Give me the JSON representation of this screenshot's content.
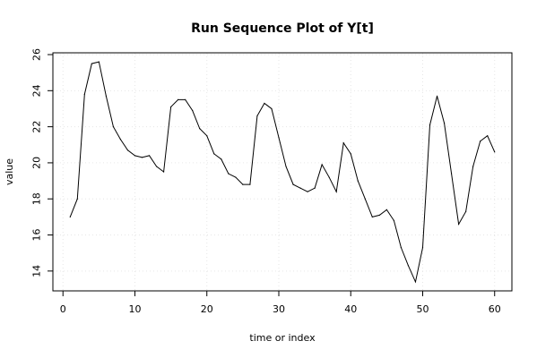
{
  "chart_data": {
    "type": "line",
    "title": "Run Sequence Plot of Y[t]",
    "xlabel": "time or index",
    "ylabel": "value",
    "xlim": [
      -1.4,
      62.4
    ],
    "ylim": [
      12.9,
      26.1
    ],
    "x_ticks": [
      0,
      10,
      20,
      30,
      40,
      50,
      60
    ],
    "y_ticks": [
      14,
      16,
      18,
      20,
      22,
      24,
      26
    ],
    "grid": true,
    "series": [
      {
        "x": [
          1,
          2,
          3,
          4,
          5,
          6,
          7,
          8,
          9,
          10,
          11,
          12,
          13,
          14,
          15,
          16,
          17,
          18,
          19,
          20,
          21,
          22,
          23,
          24,
          25,
          26,
          27,
          28,
          29,
          30,
          31,
          32,
          33,
          34,
          35,
          36,
          37,
          38,
          39,
          40,
          41,
          42,
          43,
          44,
          45,
          46,
          47,
          48,
          49,
          50,
          51,
          52,
          53,
          54,
          55,
          56,
          57,
          58,
          59,
          60
        ],
        "values": [
          17.0,
          18.0,
          23.8,
          25.5,
          25.6,
          23.7,
          22.0,
          21.3,
          20.7,
          20.4,
          20.3,
          20.4,
          19.8,
          19.5,
          23.1,
          23.5,
          23.5,
          22.9,
          21.9,
          21.5,
          20.5,
          20.2,
          19.4,
          19.2,
          18.8,
          18.8,
          22.6,
          23.3,
          23.0,
          21.4,
          19.8,
          18.8,
          18.6,
          18.4,
          18.6,
          19.9,
          19.2,
          18.4,
          21.1,
          20.5,
          19.0,
          18.0,
          17.0,
          17.1,
          17.4,
          16.8,
          15.3,
          14.3,
          13.4,
          15.3,
          22.1,
          23.7,
          22.2,
          19.4,
          16.6,
          17.3,
          19.8,
          21.2,
          21.5,
          20.6
        ]
      }
    ]
  }
}
